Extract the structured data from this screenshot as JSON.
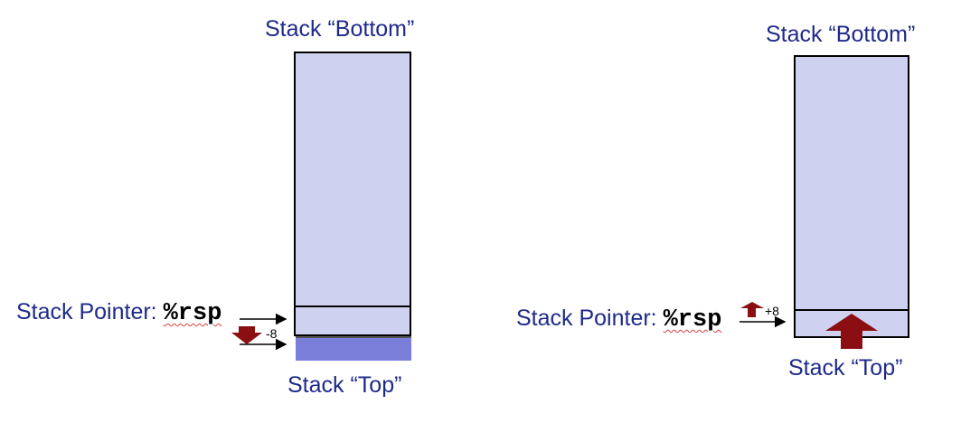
{
  "left": {
    "bottom_label": "Stack “Bottom”",
    "top_label": "Stack “Top”",
    "pointer_label": "Stack Pointer:",
    "register": "%rsp",
    "delta": "-8",
    "arrow_direction": "down"
  },
  "right": {
    "bottom_label": "Stack “Bottom”",
    "top_label": "Stack “Top”",
    "pointer_label": "Stack Pointer:",
    "register": "%rsp",
    "delta": "+8",
    "arrow_direction": "up"
  },
  "colors": {
    "label": "#1f2a8a",
    "stack_fill": "#cfd1f0",
    "pushed_cell": "#7b7ed8",
    "arrow": "#8b0f12"
  }
}
